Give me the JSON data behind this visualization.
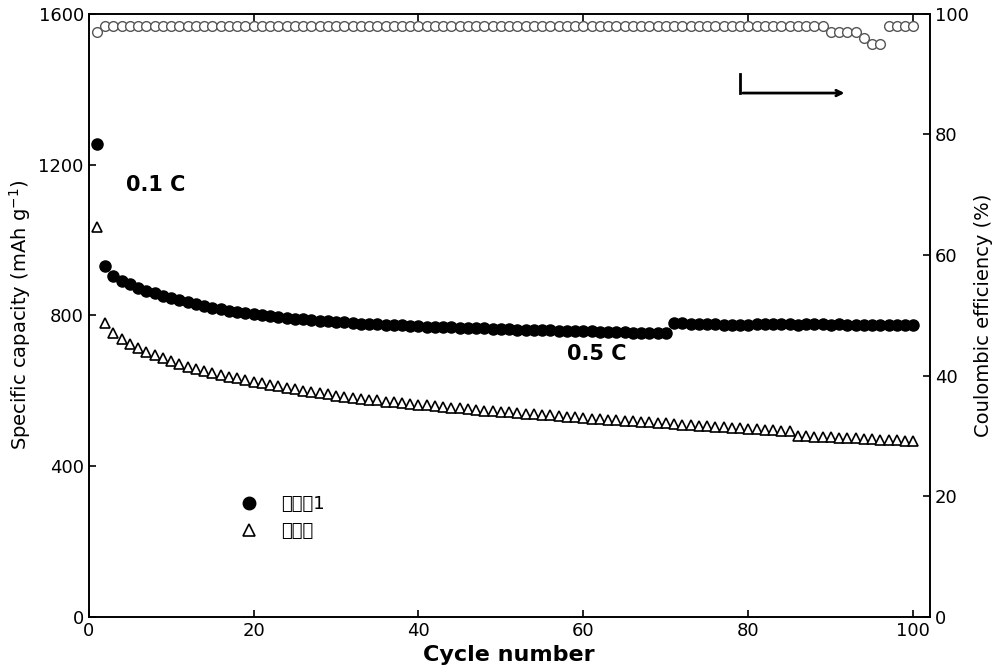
{
  "xlabel": "Cycle number",
  "ylabel_left": "Specific capacity (mAh g$^{-1}$)",
  "ylabel_right": "Coulombic efficiency (%)",
  "xlim": [
    0,
    102
  ],
  "ylim_left": [
    0,
    1600
  ],
  "ylim_right": [
    0,
    100
  ],
  "xticks": [
    0,
    20,
    40,
    60,
    80,
    100
  ],
  "yticks_left": [
    0,
    400,
    800,
    1200,
    1600
  ],
  "yticks_right": [
    0,
    20,
    40,
    60,
    80,
    100
  ],
  "label1": "实施例1",
  "label2": "对比例",
  "annotation_01c": "0.1 C",
  "annotation_05c": "0.5 C",
  "series1_x": [
    1,
    2,
    3,
    4,
    5,
    6,
    7,
    8,
    9,
    10,
    11,
    12,
    13,
    14,
    15,
    16,
    17,
    18,
    19,
    20,
    21,
    22,
    23,
    24,
    25,
    26,
    27,
    28,
    29,
    30,
    31,
    32,
    33,
    34,
    35,
    36,
    37,
    38,
    39,
    40,
    41,
    42,
    43,
    44,
    45,
    46,
    47,
    48,
    49,
    50,
    51,
    52,
    53,
    54,
    55,
    56,
    57,
    58,
    59,
    60,
    61,
    62,
    63,
    64,
    65,
    66,
    67,
    68,
    69,
    70,
    71,
    72,
    73,
    74,
    75,
    76,
    77,
    78,
    79,
    80,
    81,
    82,
    83,
    84,
    85,
    86,
    87,
    88,
    89,
    90,
    91,
    92,
    93,
    94,
    95,
    96,
    97,
    98,
    99,
    100
  ],
  "series1_y": [
    1255,
    930,
    905,
    892,
    882,
    873,
    865,
    858,
    851,
    845,
    840,
    834,
    829,
    825,
    820,
    816,
    812,
    809,
    806,
    803,
    800,
    798,
    795,
    793,
    791,
    789,
    787,
    785,
    784,
    782,
    781,
    779,
    778,
    777,
    776,
    775,
    774,
    773,
    772,
    771,
    770,
    769,
    768,
    768,
    767,
    766,
    765,
    765,
    764,
    763,
    763,
    762,
    761,
    761,
    760,
    760,
    759,
    759,
    758,
    757,
    757,
    756,
    756,
    755,
    755,
    754,
    754,
    753,
    753,
    752,
    780,
    779,
    778,
    777,
    776,
    776,
    775,
    774,
    774,
    773,
    778,
    778,
    777,
    776,
    776,
    775,
    777,
    776,
    776,
    775,
    776,
    775,
    775,
    774,
    774,
    773,
    775,
    774,
    774,
    773
  ],
  "series2_x": [
    1,
    2,
    3,
    4,
    5,
    6,
    7,
    8,
    9,
    10,
    11,
    12,
    13,
    14,
    15,
    16,
    17,
    18,
    19,
    20,
    21,
    22,
    23,
    24,
    25,
    26,
    27,
    28,
    29,
    30,
    31,
    32,
    33,
    34,
    35,
    36,
    37,
    38,
    39,
    40,
    41,
    42,
    43,
    44,
    45,
    46,
    47,
    48,
    49,
    50,
    51,
    52,
    53,
    54,
    55,
    56,
    57,
    58,
    59,
    60,
    61,
    62,
    63,
    64,
    65,
    66,
    67,
    68,
    69,
    70,
    71,
    72,
    73,
    74,
    75,
    76,
    77,
    78,
    79,
    80,
    81,
    82,
    83,
    84,
    85,
    86,
    87,
    88,
    89,
    90,
    91,
    92,
    93,
    94,
    95,
    96,
    97,
    98,
    99,
    100
  ],
  "series2_y": [
    1035,
    780,
    753,
    738,
    724,
    713,
    703,
    694,
    686,
    678,
    671,
    664,
    658,
    653,
    648,
    642,
    637,
    633,
    628,
    624,
    619,
    615,
    611,
    607,
    604,
    600,
    597,
    593,
    590,
    587,
    584,
    581,
    578,
    576,
    574,
    571,
    569,
    567,
    565,
    563,
    561,
    559,
    557,
    555,
    553,
    551,
    549,
    547,
    546,
    544,
    542,
    541,
    539,
    538,
    536,
    534,
    533,
    531,
    530,
    528,
    526,
    525,
    523,
    522,
    520,
    519,
    517,
    516,
    515,
    513,
    511,
    510,
    508,
    507,
    505,
    504,
    503,
    501,
    500,
    499,
    498,
    496,
    495,
    493,
    492,
    480,
    479,
    478,
    477,
    476,
    475,
    474,
    473,
    472,
    471,
    470,
    469,
    468,
    467,
    466
  ],
  "ce_x": [
    1,
    2,
    3,
    4,
    5,
    6,
    7,
    8,
    9,
    10,
    11,
    12,
    13,
    14,
    15,
    16,
    17,
    18,
    19,
    20,
    21,
    22,
    23,
    24,
    25,
    26,
    27,
    28,
    29,
    30,
    31,
    32,
    33,
    34,
    35,
    36,
    37,
    38,
    39,
    40,
    41,
    42,
    43,
    44,
    45,
    46,
    47,
    48,
    49,
    50,
    51,
    52,
    53,
    54,
    55,
    56,
    57,
    58,
    59,
    60,
    61,
    62,
    63,
    64,
    65,
    66,
    67,
    68,
    69,
    70,
    71,
    72,
    73,
    74,
    75,
    76,
    77,
    78,
    79,
    80,
    81,
    82,
    83,
    84,
    85,
    86,
    87,
    88,
    89,
    90,
    91,
    92,
    93,
    94,
    95,
    96,
    97,
    98,
    99,
    100
  ],
  "ce_y": [
    97,
    98,
    98,
    98,
    98,
    98,
    98,
    98,
    98,
    98,
    98,
    98,
    98,
    98,
    98,
    98,
    98,
    98,
    98,
    98,
    98,
    98,
    98,
    98,
    98,
    98,
    98,
    98,
    98,
    98,
    98,
    98,
    98,
    98,
    98,
    98,
    98,
    98,
    98,
    98,
    98,
    98,
    98,
    98,
    98,
    98,
    98,
    98,
    98,
    98,
    98,
    98,
    98,
    98,
    98,
    98,
    98,
    98,
    98,
    98,
    98,
    98,
    98,
    98,
    98,
    98,
    98,
    98,
    98,
    98,
    98,
    98,
    98,
    98,
    98,
    98,
    98,
    98,
    98,
    98,
    98,
    98,
    98,
    98,
    98,
    98,
    98,
    98,
    98,
    97,
    97,
    97,
    97,
    96,
    95,
    95,
    98,
    98,
    98,
    98
  ],
  "marker_size_filled": 8,
  "marker_size_open_tri": 7,
  "marker_size_ce": 7,
  "font_size_xlabel": 16,
  "font_size_ylabel": 14,
  "font_size_ticks": 13,
  "font_size_legend": 13,
  "font_size_annotation": 15
}
